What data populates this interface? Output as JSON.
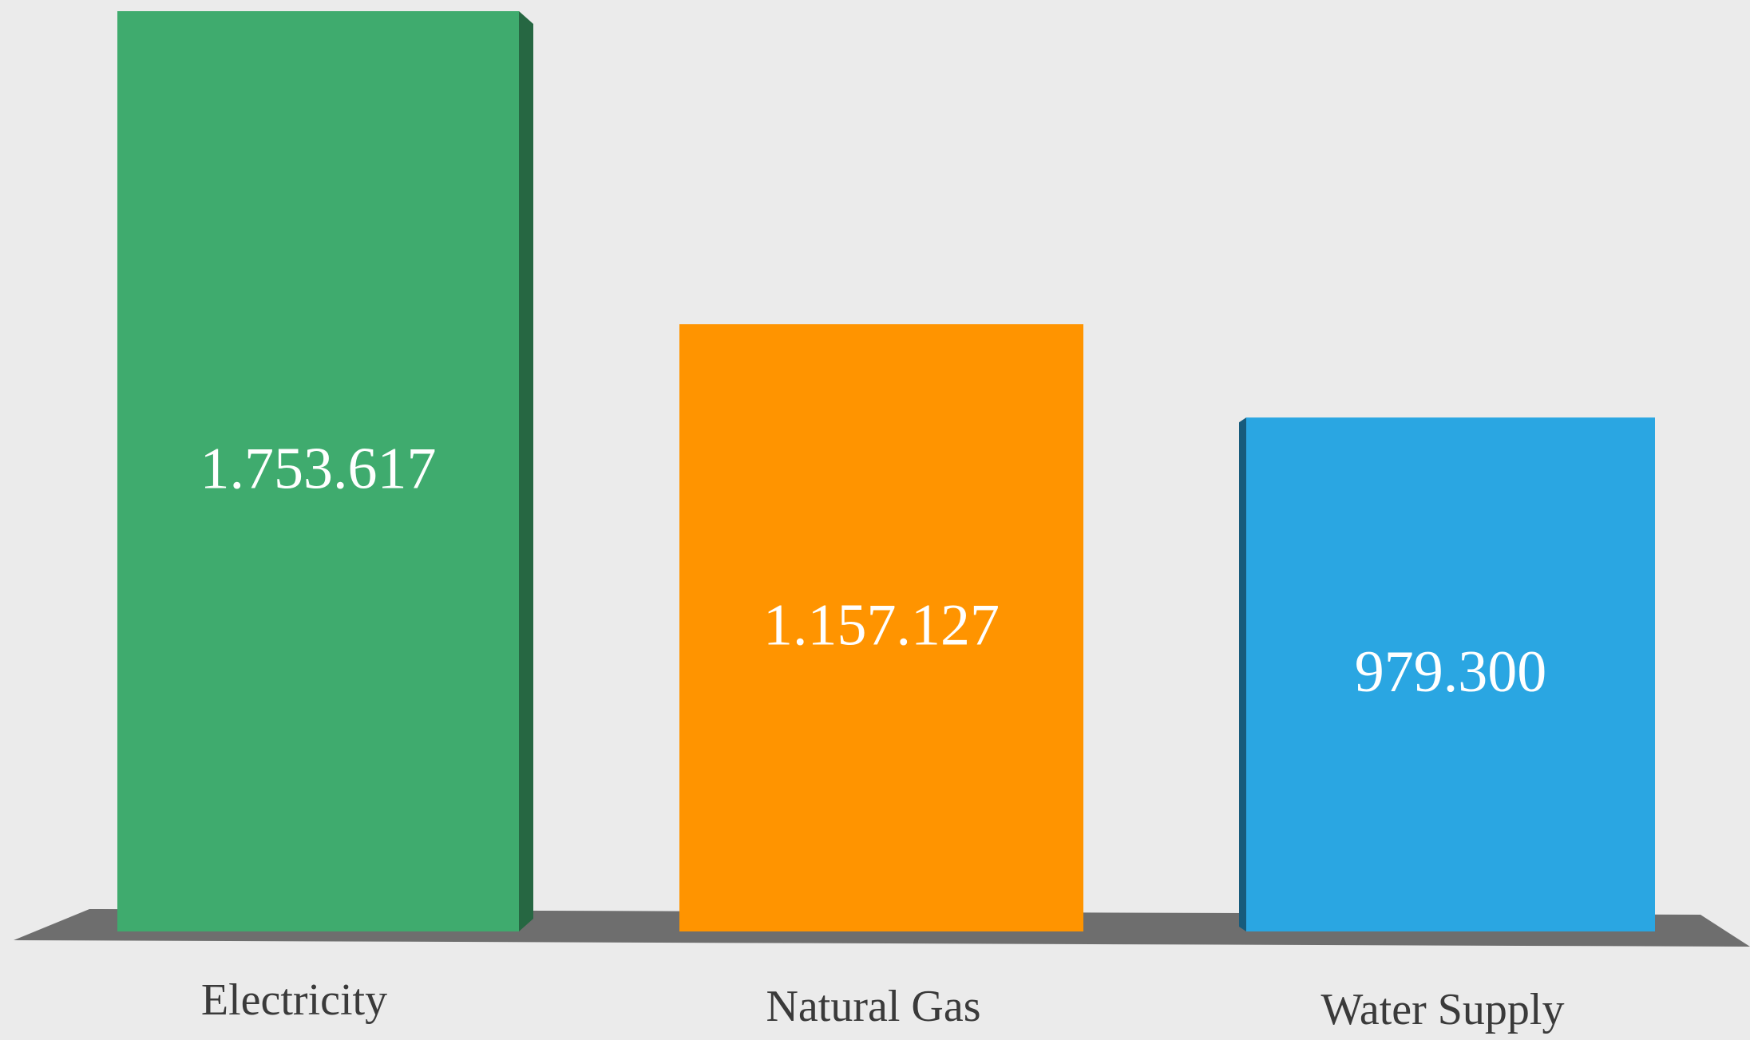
{
  "chart_data": {
    "type": "bar",
    "categories": [
      "Electricity",
      "Natural Gas",
      "Water Supply"
    ],
    "values": [
      1753617,
      1157127,
      979300
    ],
    "value_labels": [
      "1.753.617",
      "1.157.127",
      "979.300"
    ],
    "colors": [
      "#3fab6e",
      "#ff9400",
      "#2aa6e2"
    ]
  }
}
